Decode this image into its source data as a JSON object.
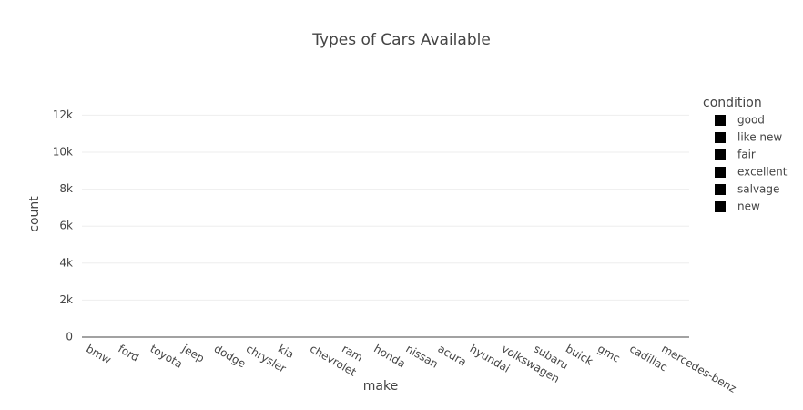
{
  "chart_data": {
    "type": "bar",
    "title": "Types of Cars Available",
    "x_label": "make",
    "y_label": "count",
    "categories": [
      "bmw",
      "ford",
      "toyota",
      "jeep",
      "dodge",
      "chrysler",
      "kia",
      "chevrolet",
      "ram",
      "honda",
      "nissan",
      "acura",
      "hyundai",
      "volkswagen",
      "subaru",
      "buick",
      "gmc",
      "cadillac",
      "mercedes-benz"
    ],
    "legend_title": "condition",
    "series": [
      {
        "name": "good",
        "color": "#000000"
      },
      {
        "name": "like new",
        "color": "#000000"
      },
      {
        "name": "fair",
        "color": "#000000"
      },
      {
        "name": "excellent",
        "color": "#000000"
      },
      {
        "name": "salvage",
        "color": "#000000"
      },
      {
        "name": "new",
        "color": "#000000"
      }
    ],
    "ylim": [
      0,
      13300
    ],
    "yticks": [
      0,
      {
        "value": 2000,
        "label": "2k"
      },
      {
        "value": 4000,
        "label": "4k"
      },
      {
        "value": 6000,
        "label": "6k"
      },
      {
        "value": 8000,
        "label": "8k"
      },
      {
        "value": 10000,
        "label": "10k"
      },
      {
        "value": 12000,
        "label": "12k"
      }
    ],
    "grid": true,
    "legend_position": "right"
  }
}
